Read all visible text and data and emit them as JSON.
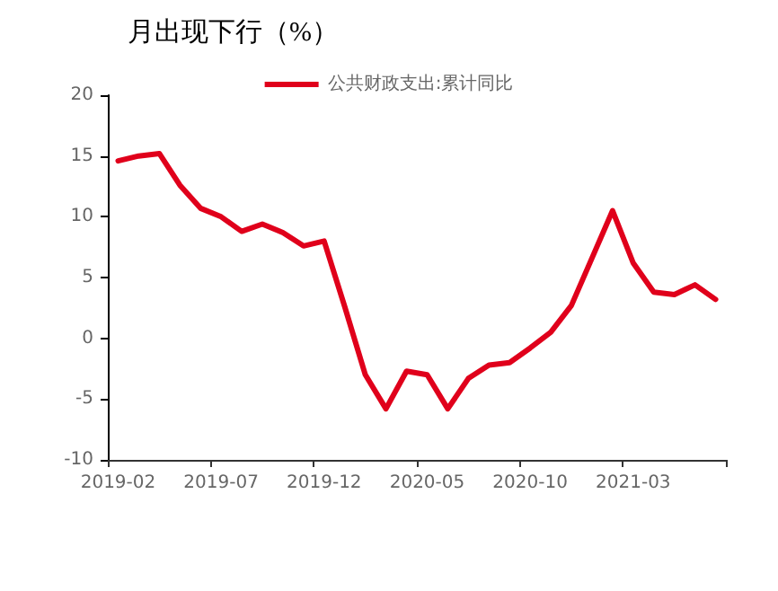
{
  "chart_data": {
    "type": "line",
    "title": "月出现下行（%）",
    "categories": [
      "2019-02",
      null,
      null,
      null,
      null,
      "2019-07",
      null,
      null,
      null,
      null,
      "2019-12",
      null,
      null,
      null,
      null,
      "2020-05",
      null,
      null,
      null,
      null,
      "2020-10",
      null,
      null,
      null,
      null,
      "2021-03",
      null,
      null,
      null,
      null
    ],
    "series": [
      {
        "name": "公共财政支出:累计同比",
        "color": "#e0001b",
        "values": [
          14.6,
          15.0,
          15.2,
          12.6,
          10.7,
          10.0,
          8.8,
          9.4,
          8.7,
          7.6,
          8.0,
          2.6,
          -3.0,
          -5.8,
          -2.7,
          -3.0,
          -5.8,
          -3.3,
          -2.2,
          -2.0,
          -0.8,
          0.5,
          2.7,
          6.6,
          10.5,
          6.2,
          3.8,
          3.6,
          4.4,
          3.2
        ]
      }
    ],
    "ylim": [
      -10,
      20
    ],
    "yticks": [
      -10,
      -5,
      0,
      5,
      10,
      15,
      20
    ],
    "grid": false,
    "legend": "top",
    "marker": "none",
    "line_style": "solid"
  }
}
